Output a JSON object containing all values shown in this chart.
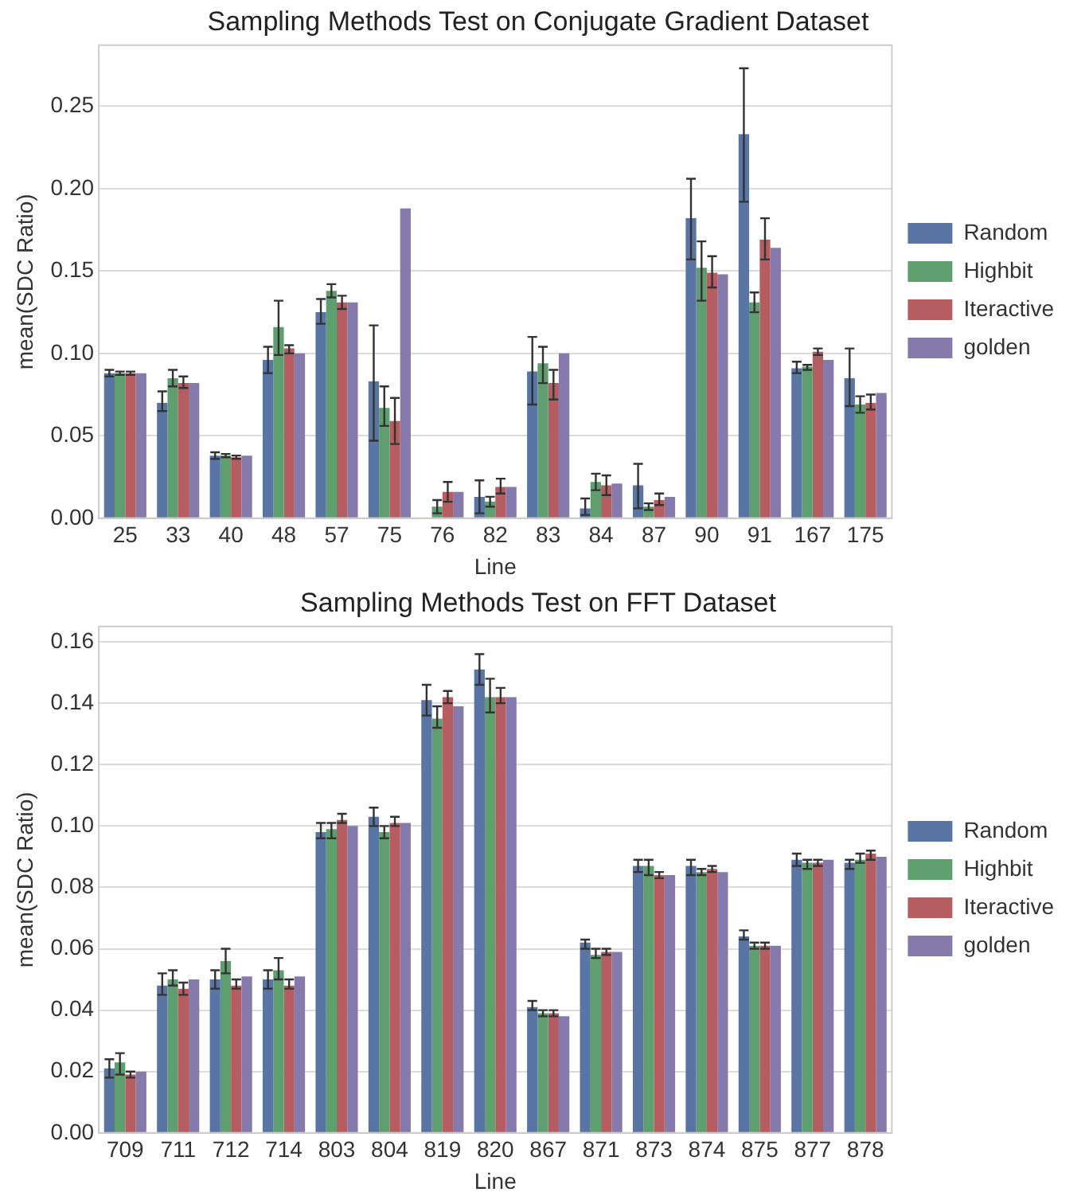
{
  "chart_data": [
    {
      "type": "bar",
      "title": "Sampling Methods Test on Conjugate Gradient Dataset",
      "xlabel": "Line",
      "ylabel": "mean(SDC Ratio)",
      "categories": [
        "25",
        "33",
        "40",
        "48",
        "57",
        "75",
        "76",
        "82",
        "83",
        "84",
        "87",
        "90",
        "91",
        "167",
        "175"
      ],
      "series": [
        {
          "name": "Random",
          "color": "#5975a4",
          "values": [
            0.088,
            0.07,
            0.038,
            0.096,
            0.125,
            0.083,
            0.0,
            0.013,
            0.089,
            0.006,
            0.02,
            0.182,
            0.233,
            0.091,
            0.085
          ],
          "errors": [
            [
              0.086,
              0.09
            ],
            [
              0.065,
              0.077
            ],
            [
              0.036,
              0.04
            ],
            [
              0.088,
              0.104
            ],
            [
              0.118,
              0.133
            ],
            [
              0.047,
              0.117
            ],
            null,
            [
              0.003,
              0.023
            ],
            [
              0.069,
              0.11
            ],
            [
              0.002,
              0.012
            ],
            [
              0.006,
              0.033
            ],
            [
              0.157,
              0.206
            ],
            [
              0.192,
              0.273
            ],
            [
              0.088,
              0.095
            ],
            [
              0.068,
              0.103
            ]
          ]
        },
        {
          "name": "Highbit",
          "color": "#5f9e6e",
          "values": [
            0.088,
            0.085,
            0.038,
            0.116,
            0.138,
            0.067,
            0.007,
            0.01,
            0.094,
            0.022,
            0.007,
            0.152,
            0.131,
            0.092,
            0.069
          ],
          "errors": [
            [
              0.087,
              0.089
            ],
            [
              0.08,
              0.09
            ],
            [
              0.037,
              0.039
            ],
            [
              0.099,
              0.132
            ],
            [
              0.134,
              0.142
            ],
            [
              0.056,
              0.08
            ],
            [
              0.003,
              0.011
            ],
            [
              0.007,
              0.013
            ],
            [
              0.082,
              0.104
            ],
            [
              0.017,
              0.027
            ],
            [
              0.005,
              0.009
            ],
            [
              0.132,
              0.168
            ],
            [
              0.125,
              0.137
            ],
            [
              0.09,
              0.093
            ],
            [
              0.064,
              0.074
            ]
          ]
        },
        {
          "name": "Iteractive",
          "color": "#b55d60",
          "values": [
            0.088,
            0.082,
            0.037,
            0.103,
            0.131,
            0.059,
            0.016,
            0.019,
            0.082,
            0.02,
            0.011,
            0.149,
            0.169,
            0.101,
            0.07
          ],
          "errors": [
            [
              0.087,
              0.089
            ],
            [
              0.079,
              0.086
            ],
            [
              0.036,
              0.038
            ],
            [
              0.1,
              0.105
            ],
            [
              0.127,
              0.135
            ],
            [
              0.045,
              0.073
            ],
            [
              0.01,
              0.022
            ],
            [
              0.015,
              0.024
            ],
            [
              0.072,
              0.09
            ],
            [
              0.014,
              0.026
            ],
            [
              0.008,
              0.015
            ],
            [
              0.14,
              0.159
            ],
            [
              0.157,
              0.182
            ],
            [
              0.099,
              0.103
            ],
            [
              0.066,
              0.075
            ]
          ]
        },
        {
          "name": "golden",
          "color": "#857aab",
          "values": [
            0.088,
            0.082,
            0.038,
            0.1,
            0.131,
            0.188,
            0.016,
            0.019,
            0.1,
            0.021,
            0.013,
            0.148,
            0.164,
            0.096,
            0.076
          ]
        }
      ],
      "ylim": [
        0,
        0.287
      ],
      "yticks": [
        {
          "value": 0,
          "label": "0.00"
        },
        0.05,
        {
          "value": 0.1,
          "label": "0.10"
        },
        0.15,
        {
          "value": 0.2,
          "label": "0.20"
        },
        0.25
      ],
      "grid": "y",
      "legend": "right"
    },
    {
      "type": "bar",
      "title": "Sampling Methods Test on FFT Dataset",
      "xlabel": "Line",
      "ylabel": "mean(SDC Ratio)",
      "categories": [
        "709",
        "711",
        "712",
        "714",
        "803",
        "804",
        "819",
        "820",
        "867",
        "871",
        "873",
        "874",
        "875",
        "877",
        "878"
      ],
      "series": [
        {
          "name": "Random",
          "color": "#5975a4",
          "values": [
            0.021,
            0.048,
            0.05,
            0.05,
            0.098,
            0.103,
            0.141,
            0.151,
            0.041,
            0.062,
            0.087,
            0.087,
            0.064,
            0.089,
            0.088
          ],
          "errors": [
            [
              0.018,
              0.024
            ],
            [
              0.045,
              0.052
            ],
            [
              0.047,
              0.053
            ],
            [
              0.047,
              0.053
            ],
            [
              0.096,
              0.101
            ],
            [
              0.1,
              0.106
            ],
            [
              0.136,
              0.146
            ],
            [
              0.146,
              0.156
            ],
            [
              0.04,
              0.043
            ],
            [
              0.06,
              0.063
            ],
            [
              0.085,
              0.089
            ],
            [
              0.084,
              0.089
            ],
            [
              0.063,
              0.066
            ],
            [
              0.087,
              0.091
            ],
            [
              0.086,
              0.089
            ]
          ]
        },
        {
          "name": "Highbit",
          "color": "#5f9e6e",
          "values": [
            0.023,
            0.05,
            0.056,
            0.053,
            0.099,
            0.098,
            0.135,
            0.142,
            0.039,
            0.058,
            0.087,
            0.085,
            0.061,
            0.088,
            0.089
          ],
          "errors": [
            [
              0.019,
              0.026
            ],
            [
              0.048,
              0.053
            ],
            [
              0.052,
              0.06
            ],
            [
              0.05,
              0.057
            ],
            [
              0.096,
              0.101
            ],
            [
              0.096,
              0.1
            ],
            [
              0.132,
              0.139
            ],
            [
              0.137,
              0.148
            ],
            [
              0.038,
              0.04
            ],
            [
              0.057,
              0.06
            ],
            [
              0.084,
              0.089
            ],
            [
              0.084,
              0.086
            ],
            [
              0.06,
              0.062
            ],
            [
              0.086,
              0.089
            ],
            [
              0.088,
              0.091
            ]
          ]
        },
        {
          "name": "Iteractive",
          "color": "#b55d60",
          "values": [
            0.019,
            0.047,
            0.048,
            0.048,
            0.102,
            0.101,
            0.142,
            0.142,
            0.039,
            0.059,
            0.084,
            0.086,
            0.061,
            0.088,
            0.091
          ],
          "errors": [
            [
              0.018,
              0.02
            ],
            [
              0.045,
              0.049
            ],
            [
              0.047,
              0.05
            ],
            [
              0.047,
              0.05
            ],
            [
              0.101,
              0.104
            ],
            [
              0.1,
              0.103
            ],
            [
              0.14,
              0.144
            ],
            [
              0.14,
              0.145
            ],
            [
              0.038,
              0.04
            ],
            [
              0.058,
              0.06
            ],
            [
              0.083,
              0.085
            ],
            [
              0.085,
              0.087
            ],
            [
              0.06,
              0.062
            ],
            [
              0.087,
              0.089
            ],
            [
              0.089,
              0.092
            ]
          ]
        },
        {
          "name": "golden",
          "color": "#857aab",
          "values": [
            0.02,
            0.05,
            0.051,
            0.051,
            0.1,
            0.101,
            0.139,
            0.142,
            0.038,
            0.059,
            0.084,
            0.085,
            0.061,
            0.089,
            0.09
          ]
        }
      ],
      "ylim": [
        0,
        0.165
      ],
      "yticks": [
        {
          "value": 0,
          "label": "0.00"
        },
        0.02,
        0.04,
        0.06,
        0.08,
        {
          "value": 0.1,
          "label": "0.10"
        },
        0.12,
        0.14,
        0.16
      ],
      "grid": "y",
      "legend": "right"
    }
  ]
}
